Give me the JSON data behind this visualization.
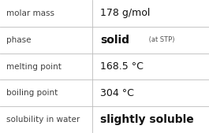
{
  "rows": [
    {
      "label": "molar mass",
      "value": "178 g/mol",
      "value_suffix": null,
      "value_bold": false
    },
    {
      "label": "phase",
      "value": "solid",
      "value_suffix": " (at STP)",
      "value_bold": true
    },
    {
      "label": "melting point",
      "value": "168.5 °C",
      "value_suffix": null,
      "value_bold": false
    },
    {
      "label": "boiling point",
      "value": "304 °C",
      "value_suffix": null,
      "value_bold": false
    },
    {
      "label": "solubility in water",
      "value": "slightly soluble",
      "value_suffix": null,
      "value_bold": true
    }
  ],
  "col_split": 0.44,
  "background_color": "#ffffff",
  "line_color": "#bbbbbb",
  "label_color": "#404040",
  "value_color": "#111111",
  "suffix_color": "#555555",
  "label_fontsize": 7.5,
  "value_fontsize": 8.5,
  "suffix_fontsize": 6.0
}
